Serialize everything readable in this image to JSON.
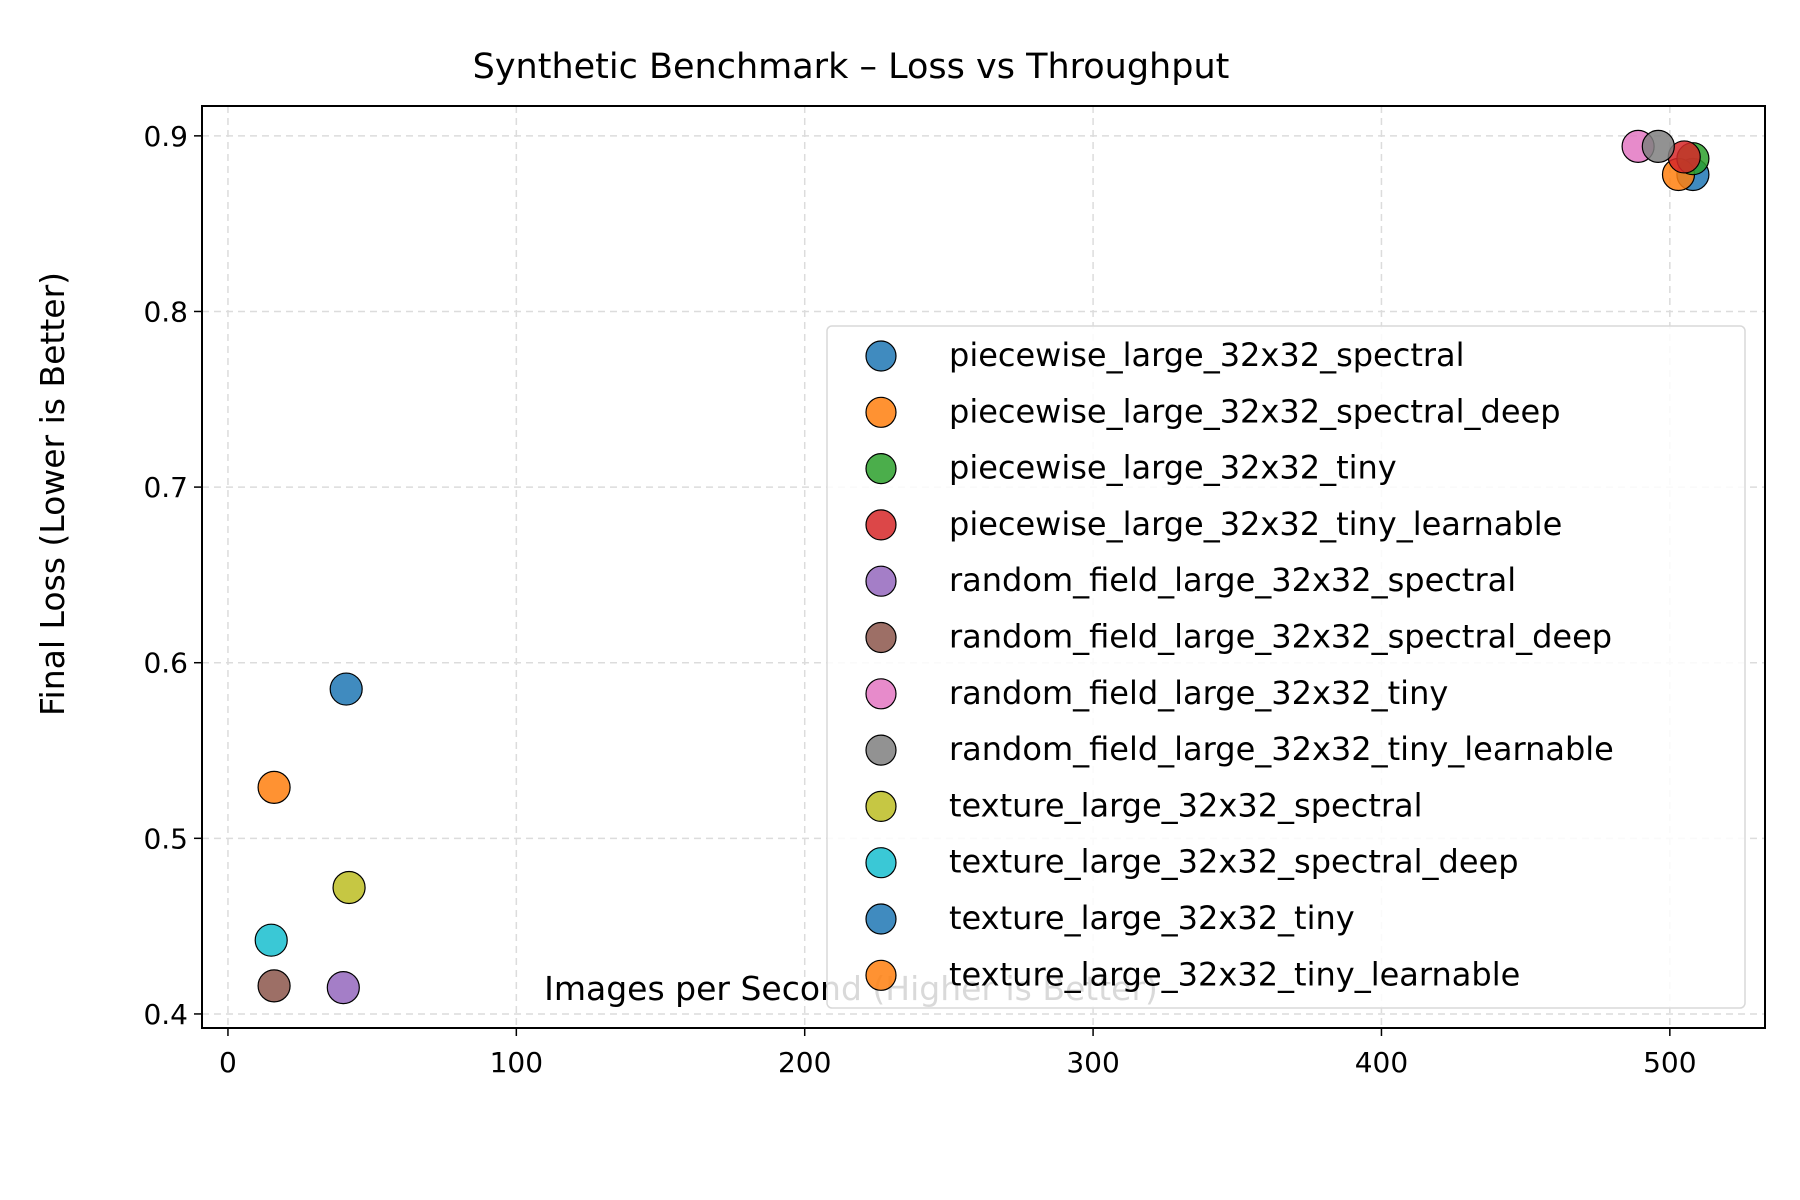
{
  "chart_data": {
    "type": "scatter",
    "title": "Synthetic Benchmark – Loss vs Throughput",
    "xlabel": "Images per Second (Higher is Better)",
    "ylabel": "Final Loss (Lower is Better)",
    "xlim": [
      -9,
      533
    ],
    "ylim": [
      0.392,
      0.917
    ],
    "xticks": [
      0,
      100,
      200,
      300,
      400,
      500
    ],
    "xtick_labels": [
      "0",
      "100",
      "200",
      "300",
      "400",
      "500"
    ],
    "yticks": [
      0.4,
      0.5,
      0.6,
      0.7,
      0.8,
      0.9
    ],
    "ytick_labels": [
      "0.4",
      "0.5",
      "0.6",
      "0.7",
      "0.8",
      "0.9"
    ],
    "grid": true,
    "legend_position": "center-right",
    "series": [
      {
        "name": "piecewise_large_32x32_spectral",
        "color": "#1f77b4",
        "points": [
          [
            508,
            0.878
          ]
        ]
      },
      {
        "name": "piecewise_large_32x32_spectral_deep",
        "color": "#ff7f0e",
        "points": [
          [
            503,
            0.878
          ]
        ]
      },
      {
        "name": "piecewise_large_32x32_tiny",
        "color": "#2ca02c",
        "points": [
          [
            508,
            0.887
          ]
        ]
      },
      {
        "name": "piecewise_large_32x32_tiny_learnable",
        "color": "#d62728",
        "points": [
          [
            505,
            0.888
          ]
        ]
      },
      {
        "name": "random_field_large_32x32_spectral",
        "color": "#9467bd",
        "points": [
          [
            40,
            0.415
          ]
        ]
      },
      {
        "name": "random_field_large_32x32_spectral_deep",
        "color": "#8c564b",
        "points": [
          [
            16,
            0.416
          ]
        ]
      },
      {
        "name": "random_field_large_32x32_tiny",
        "color": "#e377c2",
        "points": [
          [
            489,
            0.894
          ]
        ]
      },
      {
        "name": "random_field_large_32x32_tiny_learnable",
        "color": "#7f7f7f",
        "points": [
          [
            496,
            0.894
          ]
        ]
      },
      {
        "name": "texture_large_32x32_spectral",
        "color": "#bcbd22",
        "points": [
          [
            42,
            0.472
          ]
        ]
      },
      {
        "name": "texture_large_32x32_spectral_deep",
        "color": "#17becf",
        "points": [
          [
            15,
            0.442
          ]
        ]
      },
      {
        "name": "texture_large_32x32_tiny",
        "color": "#1f77b4",
        "points": [
          [
            41,
            0.585
          ]
        ]
      },
      {
        "name": "texture_large_32x32_tiny_learnable",
        "color": "#ff7f0e",
        "points": [
          [
            16,
            0.529
          ]
        ]
      }
    ]
  }
}
